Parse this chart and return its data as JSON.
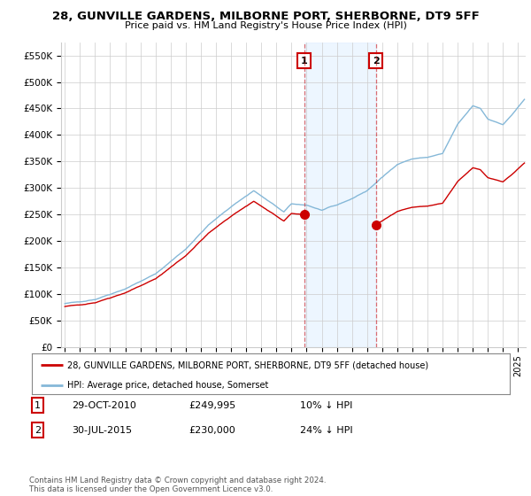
{
  "title": "28, GUNVILLE GARDENS, MILBORNE PORT, SHERBORNE, DT9 5FF",
  "subtitle": "Price paid vs. HM Land Registry's House Price Index (HPI)",
  "ylabel_ticks": [
    "£0",
    "£50K",
    "£100K",
    "£150K",
    "£200K",
    "£250K",
    "£300K",
    "£350K",
    "£400K",
    "£450K",
    "£500K",
    "£550K"
  ],
  "ytick_values": [
    0,
    50000,
    100000,
    150000,
    200000,
    250000,
    300000,
    350000,
    400000,
    450000,
    500000,
    550000
  ],
  "ylim": [
    0,
    575000
  ],
  "hpi_color": "#85b8d8",
  "price_color": "#cc0000",
  "vline_color": "#cc0000",
  "vline_alpha": 0.55,
  "span_color": "#ddeeff",
  "span_alpha": 0.5,
  "t1_year": 2010.833,
  "t1_price": 249995,
  "t2_year": 2015.583,
  "t2_price": 230000,
  "legend_label1": "28, GUNVILLE GARDENS, MILBORNE PORT, SHERBORNE, DT9 5FF (detached house)",
  "legend_label2": "HPI: Average price, detached house, Somerset",
  "footer": "Contains HM Land Registry data © Crown copyright and database right 2024.\nThis data is licensed under the Open Government Licence v3.0.",
  "background_color": "#ffffff",
  "grid_color": "#cccccc",
  "box1_label": "1",
  "box2_label": "2",
  "ann1_date": "29-OCT-2010",
  "ann1_price": "£249,995",
  "ann1_hpi": "10% ↓ HPI",
  "ann2_date": "30-JUL-2015",
  "ann2_price": "£230,000",
  "ann2_hpi": "24% ↓ HPI"
}
